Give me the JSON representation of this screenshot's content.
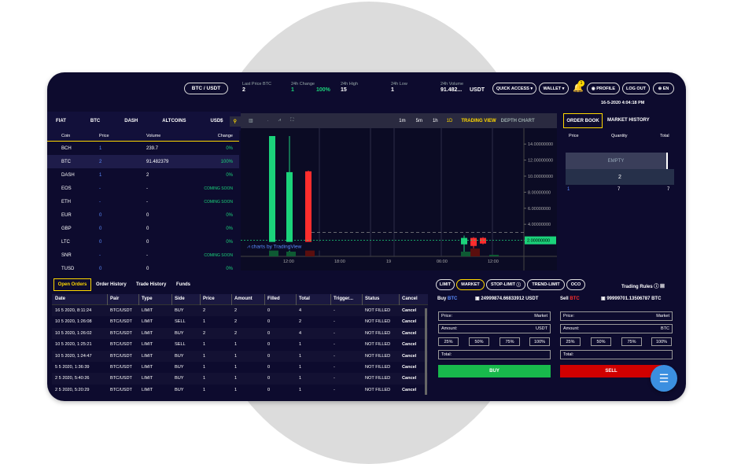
{
  "header": {
    "pair_button": "BTC / USDT",
    "last_price_label": "Last Price BTC",
    "last_price": "2",
    "change_label": "24h Change",
    "change_value": "1",
    "change_pct": "100%",
    "high_label": "24h High",
    "high": "15",
    "low_label": "24h Low",
    "low": "1",
    "volume_label": "24h Volume",
    "volume": "91.482...",
    "volume_unit": "USDT",
    "quick_access": "QUICK ACCESS",
    "wallet": "WALLET",
    "notif_count": "1",
    "profile": "PROFILE",
    "logout": "LOG OUT",
    "lang": "EN",
    "datetime": "16-5-2020 4:04:18 PM"
  },
  "markets": {
    "tabs": [
      "FIAT",
      "BTC",
      "DASH",
      "ALTCOINS",
      "USD$"
    ],
    "headers": [
      "Coin",
      "Price",
      "Volume",
      "Change"
    ],
    "rows": [
      [
        "BCH",
        "1",
        "239.7",
        "0%"
      ],
      [
        "BTC",
        "2",
        "91.482379",
        "100%"
      ],
      [
        "DASH",
        "1",
        "2",
        "0%"
      ],
      [
        "EOS",
        "-",
        "-",
        "COMING SOON"
      ],
      [
        "ETH",
        "-",
        "-",
        "COMING SOON"
      ],
      [
        "EUR",
        "0",
        "0",
        "0%"
      ],
      [
        "GBP",
        "0",
        "0",
        "0%"
      ],
      [
        "LTC",
        "0",
        "0",
        "0%"
      ],
      [
        "SNR",
        "-",
        "-",
        "COMING SOON"
      ],
      [
        "TUSD",
        "0",
        "0",
        "0%"
      ]
    ]
  },
  "chart": {
    "intervals": [
      "1m",
      "5m",
      "1h",
      "1D"
    ],
    "trading_view": "TRADING VIEW",
    "depth_chart": "DEPTH CHART",
    "watermark": "charts by TradingView",
    "price_tag": "2.00000000",
    "chart_data": {
      "type": "candlestick",
      "y_ticks": [
        "14.00000000",
        "12.00000000",
        "10.00000000",
        "8.00000000",
        "6.00000000",
        "4.00000000",
        "2.00000000"
      ],
      "x_ticks": [
        "12:00",
        "18:00",
        "19",
        "06:00",
        "12:00"
      ],
      "ylim": [
        0,
        15
      ]
    }
  },
  "orderbook": {
    "tab_active": "ORDER BOOK",
    "tab_history": "MARKET HISTORY",
    "headers": [
      "Price",
      "Quantity",
      "Total"
    ],
    "empty": "EMPTY",
    "mid": "2",
    "row": [
      "1",
      "7",
      "7"
    ]
  },
  "orders": {
    "tabs": [
      "Open Orders",
      "Order History",
      "Trade History",
      "Funds"
    ],
    "headers": [
      "Date",
      "Pair",
      "Type",
      "Side",
      "Price",
      "Amount",
      "Filled",
      "Total",
      "Trigger...",
      "Status",
      "Cancel"
    ],
    "rows": [
      [
        "16 5 2020, 8:11:24",
        "BTC/USDT",
        "LIMIT",
        "BUY",
        "2",
        "2",
        "0",
        "4",
        "-",
        "NOT FILLED",
        "Cancel"
      ],
      [
        "10 5 2020, 1:26:08",
        "BTC/USDT",
        "LIMIT",
        "SELL",
        "1",
        "2",
        "0",
        "2",
        "-",
        "NOT FILLED",
        "Cancel"
      ],
      [
        "10 5 2020, 1:26:02",
        "BTC/USDT",
        "LIMIT",
        "BUY",
        "2",
        "2",
        "0",
        "4",
        "-",
        "NOT FILLED",
        "Cancel"
      ],
      [
        "10 5 2020, 1:25:21",
        "BTC/USDT",
        "LIMIT",
        "SELL",
        "1",
        "1",
        "0",
        "1",
        "-",
        "NOT FILLED",
        "Cancel"
      ],
      [
        "10 5 2020, 1:24:47",
        "BTC/USDT",
        "LIMIT",
        "BUY",
        "1",
        "1",
        "0",
        "1",
        "-",
        "NOT FILLED",
        "Cancel"
      ],
      [
        "5 5 2020, 1:36:39",
        "BTC/USDT",
        "LIMIT",
        "BUY",
        "1",
        "1",
        "0",
        "1",
        "-",
        "NOT FILLED",
        "Cancel"
      ],
      [
        "2 5 2020, 5:40:26",
        "BTC/USDT",
        "LIMIT",
        "BUY",
        "1",
        "1",
        "0",
        "1",
        "-",
        "NOT FILLED",
        "Cancel"
      ],
      [
        "2 5 2020, 5:20:29",
        "BTC/USDT",
        "LIMIT",
        "BUY",
        "1",
        "1",
        "0",
        "1",
        "-",
        "NOT FILLED",
        "Cancel"
      ]
    ]
  },
  "trade": {
    "types": [
      "LIMIT",
      "MARKET",
      "STOP-LIMIT",
      "TREND-LIMIT",
      "OCO"
    ],
    "rules": "Trading Rules",
    "buy_label": "Buy",
    "buy_coin": "BTC",
    "buy_balance": "24999874.66833912 USDT",
    "sell_label": "Sell",
    "sell_coin": "BTC",
    "sell_balance": "99999701.13506787 BTC",
    "price_label": "Price:",
    "market_value": "Market",
    "amount_label": "Amount:",
    "buy_amount_unit": "USDT",
    "sell_amount_unit": "BTC",
    "pcts": [
      "25%",
      "50%",
      "75%",
      "100%"
    ],
    "total_label": "Total:",
    "buy_button": "BUY",
    "sell_button": "SELL"
  }
}
